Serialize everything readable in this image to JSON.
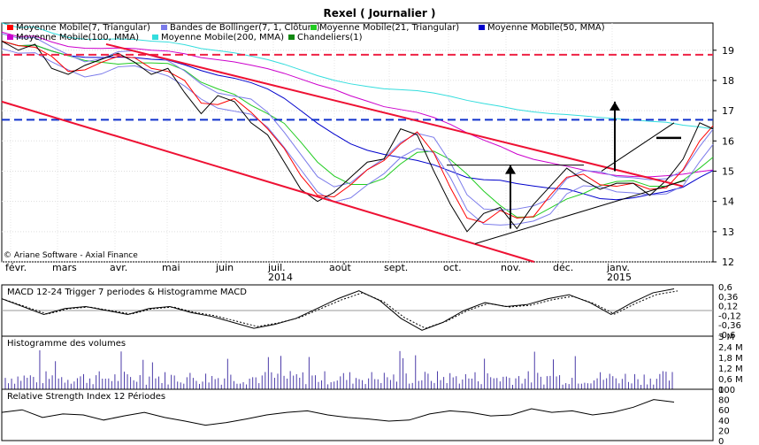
{
  "chart_data": {
    "type": "line",
    "title": "Rexel  ( Journalier )",
    "credit": "© Ariane Software - Axial Finance",
    "x_months": [
      {
        "label": "févr.",
        "year": ""
      },
      {
        "label": "mars",
        "year": ""
      },
      {
        "label": "avr.",
        "year": ""
      },
      {
        "label": "mai",
        "year": ""
      },
      {
        "label": "juin",
        "year": ""
      },
      {
        "label": "juil.",
        "year": "2014"
      },
      {
        "label": "août",
        "year": ""
      },
      {
        "label": "sept.",
        "year": ""
      },
      {
        "label": "oct.",
        "year": ""
      },
      {
        "label": "nov.",
        "year": ""
      },
      {
        "label": "déc.",
        "year": ""
      },
      {
        "label": "janv.",
        "year": "2015"
      }
    ],
    "legend": [
      {
        "name": "Moyenne Mobile(7, Triangular)",
        "color": "#ff0000"
      },
      {
        "name": "Bandes de Bollinger(7, 1, Clôture)",
        "color": "#7b7bea"
      },
      {
        "name": "Moyenne Mobile(21, Triangular)",
        "color": "#22cc22"
      },
      {
        "name": "Moyenne Mobile(50, MMA)",
        "color": "#0000cc"
      },
      {
        "name": "Moyenne Mobile(100, MMA)",
        "color": "#cc00cc"
      },
      {
        "name": "Moyenne Mobile(200, MMA)",
        "color": "#33dddd"
      },
      {
        "name": "Chandeliers(1)",
        "color": "#118811"
      }
    ],
    "price_axis": {
      "ticks": [
        "12",
        "13",
        "14",
        "15",
        "16",
        "17",
        "18",
        "19"
      ],
      "ylim": [
        12,
        19.9
      ]
    },
    "price_series": [
      [
        0,
        19.3
      ],
      [
        5,
        19.0
      ],
      [
        10,
        19.2
      ],
      [
        15,
        18.4
      ],
      [
        20,
        18.2
      ],
      [
        25,
        18.5
      ],
      [
        30,
        18.7
      ],
      [
        35,
        18.9
      ],
      [
        40,
        18.6
      ],
      [
        45,
        18.2
      ],
      [
        50,
        18.4
      ],
      [
        55,
        17.6
      ],
      [
        60,
        16.9
      ],
      [
        65,
        17.5
      ],
      [
        70,
        17.3
      ],
      [
        75,
        16.6
      ],
      [
        80,
        16.2
      ],
      [
        85,
        15.3
      ],
      [
        90,
        14.4
      ],
      [
        95,
        14.0
      ],
      [
        100,
        14.3
      ],
      [
        105,
        14.8
      ],
      [
        110,
        15.3
      ],
      [
        115,
        15.4
      ],
      [
        120,
        16.4
      ],
      [
        125,
        16.2
      ],
      [
        130,
        15.0
      ],
      [
        135,
        13.9
      ],
      [
        140,
        13.0
      ],
      [
        145,
        13.6
      ],
      [
        150,
        13.8
      ],
      [
        155,
        13.1
      ],
      [
        160,
        13.9
      ],
      [
        165,
        14.5
      ],
      [
        170,
        15.1
      ],
      [
        175,
        14.7
      ],
      [
        180,
        14.4
      ],
      [
        185,
        14.6
      ],
      [
        190,
        14.6
      ],
      [
        195,
        14.2
      ],
      [
        200,
        14.7
      ],
      [
        205,
        15.4
      ],
      [
        210,
        16.6
      ],
      [
        214,
        16.4
      ]
    ],
    "annotations": {
      "resistance_red": 18.85,
      "resistance_blue": 16.7,
      "upper_channel_start": 19.2,
      "upper_channel_end": 14.5,
      "lower_channel_start": 17.3,
      "lower_channel_end": 12.0
    },
    "macd": {
      "title": "MACD 12-24   Trigger 7 periodes & Histogramme MACD",
      "ticks": [
        "0,6",
        "0,36",
        "0,12",
        "-0,12",
        "-0,36",
        "-0,6"
      ],
      "ylim": [
        -0.65,
        0.65
      ],
      "values": [
        0.3,
        0.1,
        -0.1,
        0.05,
        0.1,
        0.0,
        -0.1,
        0.05,
        0.1,
        -0.05,
        -0.15,
        -0.3,
        -0.45,
        -0.35,
        -0.2,
        0.05,
        0.3,
        0.5,
        0.25,
        -0.2,
        -0.5,
        -0.3,
        0.0,
        0.2,
        0.1,
        0.15,
        0.3,
        0.4,
        0.2,
        -0.1,
        0.2,
        0.45,
        0.55
      ]
    },
    "volume": {
      "title": "Histogramme des volumes",
      "ticks": [
        "3 M",
        "2,4 M",
        "1,8 M",
        "1,2 M",
        "0,6 M",
        "0"
      ],
      "ylim": [
        0,
        3.0
      ]
    },
    "rsi": {
      "title": "Relative Strength Index 12 Périodes",
      "ticks": [
        "100",
        "80",
        "60",
        "40",
        "20",
        "0"
      ],
      "ylim": [
        0,
        100
      ],
      "values": [
        55,
        60,
        45,
        52,
        50,
        40,
        48,
        55,
        45,
        38,
        30,
        35,
        42,
        50,
        55,
        58,
        50,
        45,
        42,
        38,
        40,
        52,
        58,
        55,
        48,
        50,
        62,
        55,
        58,
        50,
        55,
        65,
        80,
        75
      ]
    }
  }
}
